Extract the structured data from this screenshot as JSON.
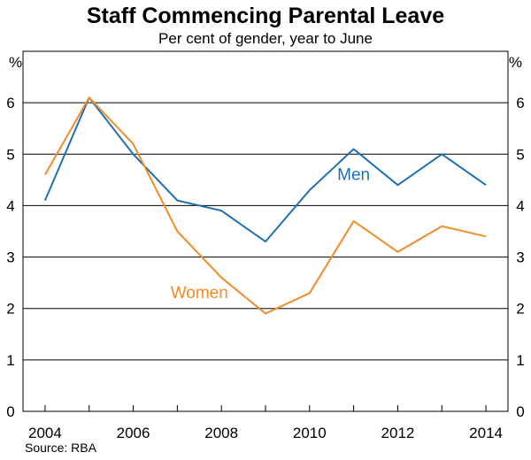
{
  "chart_data": {
    "type": "line",
    "title": "Staff Commencing Parental Leave",
    "subtitle": "Per cent of gender, year to June",
    "ylabel_left": "%",
    "ylabel_right": "%",
    "source": "Source: RBA",
    "x": [
      2004,
      2005,
      2006,
      2007,
      2008,
      2009,
      2010,
      2011,
      2012,
      2013,
      2014
    ],
    "xlim": [
      2003.5,
      2014.5
    ],
    "x_ticks": [
      2004,
      2006,
      2008,
      2010,
      2012,
      2014
    ],
    "x_tick_labels": [
      "2004",
      "2006",
      "2008",
      "2010",
      "2012",
      "2014"
    ],
    "ylim": [
      0,
      7
    ],
    "y_ticks": [
      0,
      1,
      2,
      3,
      4,
      5,
      6
    ],
    "y_tick_labels": [
      "0",
      "1",
      "2",
      "3",
      "4",
      "5",
      "6"
    ],
    "grid": true,
    "series": [
      {
        "name": "Men",
        "label": "Men",
        "color": "#1f6fb4",
        "label_x": 2011.0,
        "label_y": 4.5,
        "values": [
          4.1,
          6.1,
          5.0,
          4.1,
          3.9,
          3.3,
          4.3,
          5.1,
          4.4,
          5.0,
          4.4
        ]
      },
      {
        "name": "Women",
        "label": "Women",
        "color": "#f28c28",
        "label_x": 2007.5,
        "label_y": 2.2,
        "values": [
          4.6,
          6.1,
          5.2,
          3.5,
          2.6,
          1.9,
          2.3,
          3.7,
          3.1,
          3.6,
          3.4
        ]
      }
    ]
  }
}
